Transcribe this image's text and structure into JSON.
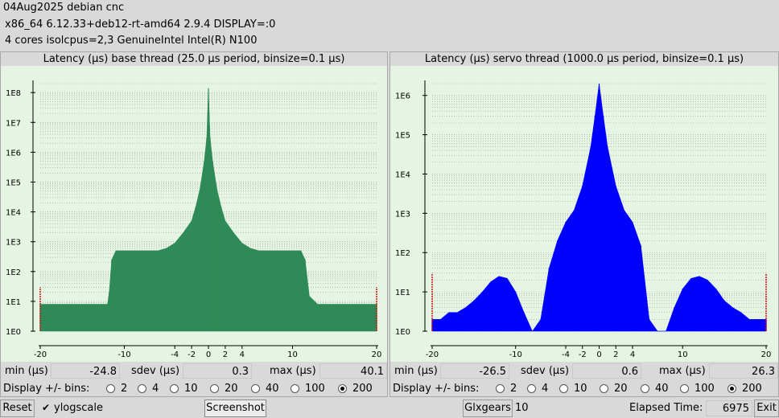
{
  "header": {
    "line1": "04Aug2025 debian cnc",
    "line2": "x86_64  6.12.33+deb12-rt-amd64  2.9.4  DISPLAY=:0",
    "line3": "4 cores  isolcpus=2,3   GenuineIntel  Intel(R) N100"
  },
  "panels": [
    {
      "title": "Latency (μs) base thread (25.0 μs period, binsize=0.1 μs)",
      "min_label": "min (μs)",
      "min": "-24.8",
      "sdev_label": "sdev (μs)",
      "sdev": "0.3",
      "max_label": "max (μs)",
      "max": "40.1",
      "bins_label": "Display +/- bins:",
      "bin_options": [
        "2",
        "4",
        "10",
        "20",
        "40",
        "100",
        "200"
      ],
      "selected_bin": "200"
    },
    {
      "title": "Latency (μs) servo thread (1000.0 μs period, binsize=0.1 μs)",
      "min_label": "min (μs)",
      "min": "-26.5",
      "sdev_label": "sdev (μs)",
      "sdev": "0.6",
      "max_label": "max (μs)",
      "max": "26.3",
      "bins_label": "Display +/- bins:",
      "bin_options": [
        "2",
        "4",
        "10",
        "20",
        "40",
        "100",
        "200"
      ],
      "selected_bin": "200"
    }
  ],
  "footer": {
    "reset": "Reset",
    "ylogscale": "ylogscale",
    "ylogscale_checked": true,
    "screenshot": "Screenshot",
    "glxgears": "Glxgears",
    "glxgears_count": "10",
    "elapsed_label": "Elapsed Time:",
    "elapsed_value": "6975",
    "exit": "Exit"
  },
  "colors": {
    "plot_bg": "#e6f5e3",
    "base_fill": "#2e8b57",
    "servo_fill": "#0000ff",
    "grid": "#9a9a9a",
    "edge_marker": "#d01010"
  },
  "chart_data": [
    {
      "type": "bar",
      "title": "Latency (μs) base thread (25.0 μs period, binsize=0.1 μs)",
      "xlabel": "",
      "ylabel": "",
      "xlim": [
        -20,
        20
      ],
      "x_ticks": [
        -20,
        -10,
        -4,
        -2,
        0,
        2,
        4,
        10,
        20
      ],
      "yscale": "log",
      "ylim": [
        1,
        200000000
      ],
      "y_ticks": [
        "1E0",
        "1E1",
        "1E2",
        "1E3",
        "1E4",
        "1E5",
        "1E6",
        "1E7",
        "1E8"
      ],
      "grid": true,
      "series": [
        {
          "x": [
            -20,
            -19,
            -18,
            -17,
            -16,
            -15,
            -14,
            -13,
            -12,
            -11.8,
            -11.5,
            -11,
            -10,
            -8,
            -6,
            -5,
            -4,
            -3,
            -2,
            -1.5,
            -1,
            -0.5,
            -0.2,
            0,
            0.2,
            0.5,
            1,
            1.5,
            2,
            3,
            4,
            5,
            6,
            8,
            10,
            11,
            11.5,
            12,
            13,
            14,
            15,
            16,
            17,
            18,
            19,
            20
          ],
          "values": [
            8,
            8,
            8,
            8,
            8,
            8,
            8,
            8,
            8,
            20,
            250,
            500,
            500,
            500,
            500,
            600,
            900,
            2000,
            5000,
            15000,
            60000,
            500000,
            3000000,
            140000000,
            3000000,
            500000,
            60000,
            15000,
            5000,
            2000,
            900,
            600,
            500,
            500,
            500,
            500,
            250,
            15,
            8,
            8,
            8,
            8,
            8,
            8,
            8,
            8
          ]
        }
      ]
    },
    {
      "type": "bar",
      "title": "Latency (μs) servo thread (1000.0 μs period, binsize=0.1 μs)",
      "xlabel": "",
      "ylabel": "",
      "xlim": [
        -20,
        20
      ],
      "x_ticks": [
        -20,
        -10,
        -4,
        -2,
        0,
        2,
        4,
        10,
        20
      ],
      "yscale": "log",
      "ylim": [
        1,
        2000000
      ],
      "y_ticks": [
        "1E0",
        "1E1",
        "1E2",
        "1E3",
        "1E4",
        "1E5",
        "1E6"
      ],
      "grid": true,
      "series": [
        {
          "x": [
            -20,
            -19,
            -18,
            -17,
            -16,
            -15,
            -14,
            -13,
            -12,
            -11,
            -10,
            -9,
            -8,
            -7,
            -6,
            -5,
            -4,
            -3,
            -2,
            -1,
            -0.5,
            0,
            0.5,
            1,
            2,
            3,
            4,
            5,
            6,
            7,
            8,
            9,
            10,
            11,
            12,
            13,
            14,
            15,
            16,
            17,
            18,
            19,
            20
          ],
          "values": [
            2,
            2,
            3,
            3,
            4,
            6,
            10,
            18,
            25,
            22,
            10,
            3,
            1,
            2,
            40,
            200,
            600,
            1200,
            5000,
            50000,
            300000,
            2000000,
            300000,
            50000,
            5000,
            1200,
            600,
            150,
            2,
            1,
            1,
            4,
            12,
            22,
            25,
            20,
            12,
            6,
            4,
            3,
            2,
            2,
            2
          ]
        }
      ]
    }
  ]
}
